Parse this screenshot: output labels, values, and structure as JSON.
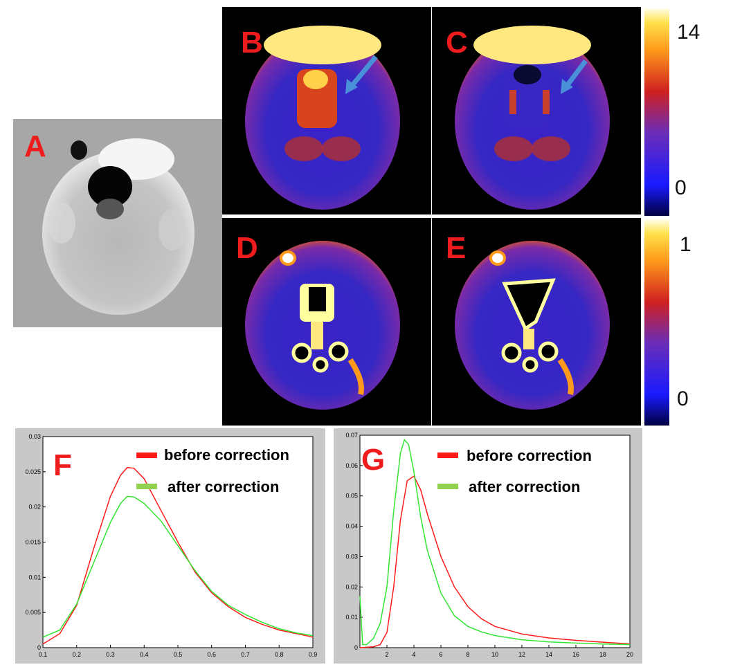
{
  "panels": {
    "A": "A",
    "B": "B",
    "C": "C",
    "D": "D",
    "E": "E",
    "F": "F",
    "G": "G"
  },
  "colorbar_top": {
    "max_label": "14",
    "min_label": "0"
  },
  "colorbar_bottom": {
    "max_label": "1",
    "min_label": "0"
  },
  "colors": {
    "before": "#ff1a1a",
    "after": "#33e633",
    "legend_after": "#92d050",
    "arrow": "#4a90d9",
    "panel_letter": "#ee1c1c"
  },
  "chart_data": [
    {
      "type": "line",
      "panel": "F",
      "legend": [
        "before correction",
        "after correction"
      ],
      "xlim": [
        0.1,
        0.9
      ],
      "ylim": [
        0,
        0.03
      ],
      "x_ticks": [
        "0.1",
        "0.2",
        "0.3",
        "0.4",
        "0.5",
        "0.6",
        "0.7",
        "0.8",
        "0.9"
      ],
      "y_ticks": [
        "0",
        "0.005",
        "0.01",
        "0.015",
        "0.02",
        "0.025",
        "0.03"
      ],
      "series": [
        {
          "name": "before correction",
          "x": [
            0.1,
            0.15,
            0.2,
            0.25,
            0.3,
            0.33,
            0.35,
            0.37,
            0.4,
            0.45,
            0.5,
            0.55,
            0.6,
            0.65,
            0.7,
            0.75,
            0.8,
            0.85,
            0.9
          ],
          "y": [
            0.0005,
            0.002,
            0.006,
            0.014,
            0.0215,
            0.0245,
            0.0256,
            0.0255,
            0.024,
            0.0195,
            0.015,
            0.0108,
            0.0078,
            0.0058,
            0.0043,
            0.0033,
            0.0025,
            0.002,
            0.0015
          ]
        },
        {
          "name": "after correction",
          "x": [
            0.1,
            0.15,
            0.2,
            0.25,
            0.3,
            0.33,
            0.35,
            0.37,
            0.4,
            0.45,
            0.5,
            0.55,
            0.6,
            0.65,
            0.7,
            0.75,
            0.8,
            0.85,
            0.9
          ],
          "y": [
            0.0015,
            0.0025,
            0.0062,
            0.012,
            0.0178,
            0.0205,
            0.0215,
            0.0214,
            0.0205,
            0.018,
            0.0145,
            0.011,
            0.008,
            0.006,
            0.0047,
            0.0036,
            0.0027,
            0.0021,
            0.0017
          ]
        }
      ]
    },
    {
      "type": "line",
      "panel": "G",
      "legend": [
        "before correction",
        "after correction"
      ],
      "xlim": [
        0,
        20
      ],
      "ylim": [
        0,
        0.07
      ],
      "x_ticks": [
        "2",
        "4",
        "6",
        "8",
        "10",
        "12",
        "14",
        "16",
        "18",
        "20"
      ],
      "y_ticks": [
        "0",
        "0.01",
        "0.02",
        "0.03",
        "0.04",
        "0.05",
        "0.06",
        "0.07"
      ],
      "series": [
        {
          "name": "before correction",
          "x": [
            0,
            1,
            1.5,
            2,
            2.5,
            3,
            3.5,
            4,
            4.5,
            5,
            6,
            7,
            8,
            9,
            10,
            12,
            14,
            16,
            18,
            20
          ],
          "y": [
            0,
            0.0003,
            0.001,
            0.005,
            0.02,
            0.042,
            0.055,
            0.0565,
            0.052,
            0.044,
            0.03,
            0.02,
            0.0135,
            0.0095,
            0.007,
            0.0045,
            0.0032,
            0.0024,
            0.0018,
            0.0012
          ]
        },
        {
          "name": "after correction",
          "x": [
            0,
            0.2,
            0.5,
            1,
            1.5,
            2,
            2.5,
            3,
            3.3,
            3.6,
            4,
            4.5,
            5,
            6,
            7,
            8,
            9,
            10,
            12,
            14,
            16,
            18,
            20
          ],
          "y": [
            0.017,
            0.001,
            0.001,
            0.003,
            0.008,
            0.02,
            0.045,
            0.064,
            0.0685,
            0.067,
            0.058,
            0.043,
            0.032,
            0.018,
            0.0105,
            0.007,
            0.0052,
            0.004,
            0.0026,
            0.0019,
            0.0015,
            0.0012,
            0.001
          ]
        }
      ]
    }
  ]
}
